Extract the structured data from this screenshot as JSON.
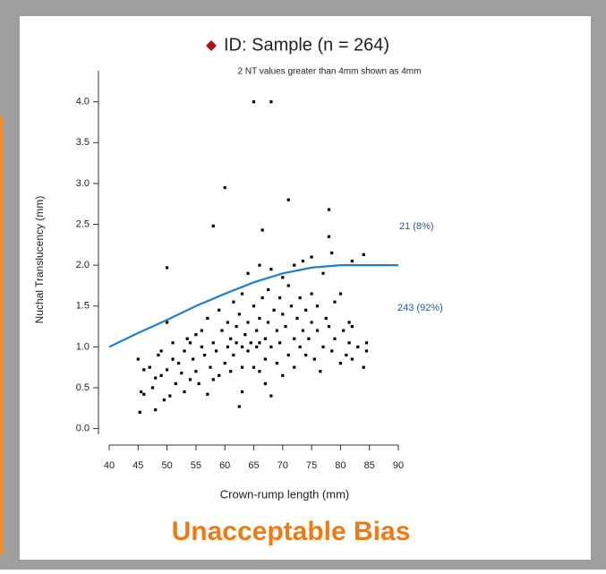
{
  "chart_data": {
    "type": "scatter",
    "title": "ID: Sample (n = 264)",
    "legend_marker_color": "#b01010",
    "subtitle": "2 NT values greater than 4mm shown as 4mm",
    "xlabel": "Crown-rump length (mm)",
    "ylabel": "Nuchal Translucency (mm)",
    "annotations": [
      "21 (8%)",
      "243 (92%)"
    ],
    "annotation_color": "#2a5a9a",
    "footer_text": "Unacceptable Bias",
    "footer_color": "#f07a12",
    "xlim": [
      40,
      90
    ],
    "xticks": [
      40,
      45,
      50,
      55,
      60,
      65,
      70,
      75,
      80,
      85,
      90
    ],
    "ylim": [
      -0.07,
      4.38
    ],
    "yticks": [
      {
        "value": 0,
        "label": "0.0"
      },
      0.5,
      {
        "value": 1,
        "label": "1.0"
      },
      1.5,
      {
        "value": 2,
        "label": "2.0"
      },
      2.5,
      {
        "value": 3,
        "label": "3.0"
      },
      3.5,
      {
        "value": 4,
        "label": "4.0"
      }
    ],
    "series": [
      {
        "color": "#000000",
        "x": [
          45,
          45.5,
          46,
          45.3,
          47,
          48,
          47.5,
          48.5,
          48,
          49,
          49.5,
          50,
          49,
          50.5,
          51,
          50,
          50,
          51.5,
          52,
          52.5,
          53,
          53,
          53.5,
          54,
          54.5,
          55,
          55,
          55.5,
          56,
          56,
          56.5,
          57,
          57,
          57.5,
          58,
          58,
          58.5,
          59,
          59,
          59.5,
          60,
          60,
          60.5,
          60.5,
          61,
          61,
          61.5,
          61.5,
          62,
          62,
          62.5,
          62.5,
          63,
          63,
          63,
          63.5,
          64,
          64,
          64,
          64.5,
          65,
          65,
          65,
          65.5,
          65.5,
          66,
          66,
          66,
          66.5,
          66.5,
          67,
          67,
          67,
          67.5,
          67.5,
          68,
          68,
          68,
          68,
          68.5,
          69,
          69,
          69.5,
          69.5,
          70,
          70,
          70,
          70.5,
          71,
          71,
          71,
          71.5,
          72,
          72,
          72,
          72.5,
          73,
          73,
          73.5,
          73.5,
          74,
          74,
          74.5,
          75,
          75,
          75,
          75.5,
          76,
          76,
          76.5,
          77,
          77,
          77.5,
          78,
          78,
          78,
          78.5,
          78.5,
          79,
          79,
          80,
          80,
          80.5,
          81,
          81.5,
          81.5,
          82,
          82,
          82,
          83,
          84,
          84.5,
          84.5,
          84,
          46,
          51,
          54,
          58,
          63,
          66
        ],
        "values": [
          0.85,
          0.45,
          0.42,
          0.2,
          0.75,
          0.23,
          0.5,
          0.9,
          0.62,
          0.65,
          0.35,
          0.72,
          0.95,
          0.4,
          1.05,
          1.3,
          1.97,
          0.55,
          0.8,
          0.68,
          0.45,
          0.95,
          1.1,
          0.6,
          0.85,
          1.15,
          0.7,
          0.55,
          1.0,
          1.2,
          0.9,
          0.42,
          1.35,
          0.75,
          2.48,
          1.05,
          0.95,
          1.45,
          0.65,
          1.2,
          2.95,
          0.8,
          1.3,
          1.0,
          1.1,
          0.7,
          1.55,
          0.9,
          1.25,
          1.05,
          0.27,
          1.4,
          1.0,
          0.45,
          1.65,
          1.15,
          1.9,
          0.95,
          1.3,
          1.05,
          4.0,
          1.5,
          0.75,
          1.2,
          1.0,
          2.0,
          1.35,
          0.7,
          2.43,
          1.6,
          1.1,
          0.85,
          0.55,
          1.7,
          1.3,
          4.0,
          1.95,
          1.0,
          0.4,
          1.45,
          1.2,
          0.8,
          1.6,
          1.05,
          1.85,
          1.4,
          0.65,
          1.25,
          2.8,
          1.75,
          0.9,
          1.5,
          2.0,
          1.1,
          0.75,
          1.35,
          1.6,
          1.0,
          2.05,
          1.2,
          1.45,
          0.9,
          1.1,
          2.1,
          1.3,
          1.65,
          0.85,
          1.5,
          1.2,
          0.7,
          1.0,
          1.9,
          1.35,
          2.68,
          2.35,
          1.25,
          2.15,
          0.95,
          1.55,
          1.1,
          1.65,
          0.8,
          1.2,
          0.9,
          1.3,
          1.05,
          2.05,
          1.25,
          0.85,
          1.0,
          2.13,
          1.05,
          0.95,
          0.75,
          0.72,
          0.85,
          1.05,
          0.6,
          0.75,
          1.05
        ]
      },
      {
        "color": "#1f7fd0",
        "mode": "line",
        "x": [
          40,
          45,
          50,
          55,
          60,
          65,
          70,
          75,
          80,
          85,
          90
        ],
        "values": [
          1.0,
          1.17,
          1.33,
          1.5,
          1.65,
          1.79,
          1.9,
          1.97,
          2.0,
          2.0,
          2.0
        ]
      }
    ]
  }
}
